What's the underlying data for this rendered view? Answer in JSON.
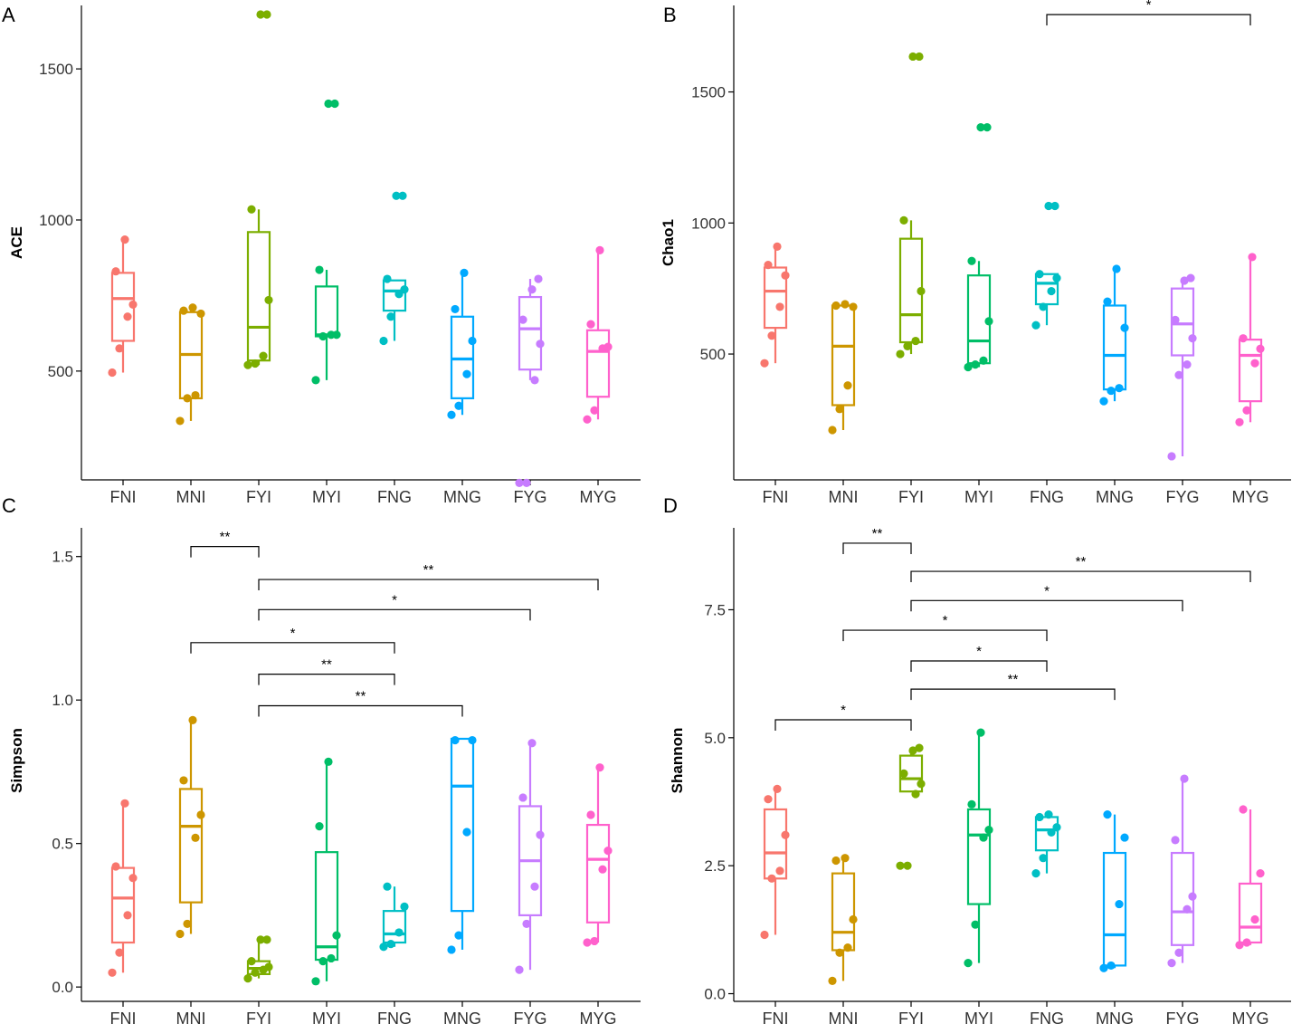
{
  "figure": {
    "categories": [
      "FNI",
      "MNI",
      "FYI",
      "MYI",
      "FNG",
      "MNG",
      "FYG",
      "MYG"
    ],
    "colors": {
      "FNI": "#F8766D",
      "MNI": "#CD9600",
      "FYI": "#7CAE00",
      "MYI": "#00BE67",
      "FNG": "#00BFC4",
      "MNG": "#00A9FF",
      "FYG": "#C77CFF",
      "MYG": "#FF61CC"
    }
  },
  "chart_data": [
    {
      "type": "box",
      "panel_label": "A",
      "ylabel": "ACE",
      "ylim": [
        140,
        1710
      ],
      "yticks": [
        500,
        1000,
        1500
      ],
      "ytick_labels": [
        "500",
        "1000",
        "1500"
      ],
      "boxes": [
        {
          "q1": 600,
          "median": 740,
          "q3": 825,
          "low": 495,
          "high": 935,
          "points": [
            495,
            575,
            680,
            720,
            830,
            935
          ]
        },
        {
          "q1": 410,
          "median": 555,
          "q3": 695,
          "low": 335,
          "high": 710,
          "points": [
            335,
            410,
            420,
            690,
            700,
            710
          ]
        },
        {
          "q1": 535,
          "median": 645,
          "q3": 960,
          "low": 520,
          "high": 1035,
          "points": [
            520,
            525,
            550,
            735,
            1035,
            1680,
            1680
          ]
        },
        {
          "q1": 615,
          "median": 620,
          "q3": 780,
          "low": 470,
          "high": 835,
          "points": [
            470,
            615,
            620,
            620,
            835,
            1385,
            1385
          ]
        },
        {
          "q1": 700,
          "median": 765,
          "q3": 800,
          "low": 600,
          "high": 800,
          "points": [
            600,
            680,
            755,
            770,
            805,
            1080,
            1080
          ]
        },
        {
          "q1": 410,
          "median": 540,
          "q3": 680,
          "low": 355,
          "high": 825,
          "points": [
            355,
            385,
            490,
            600,
            705,
            825
          ]
        },
        {
          "q1": 505,
          "median": 640,
          "q3": 745,
          "low": 470,
          "high": 805,
          "points": [
            130,
            130,
            470,
            590,
            670,
            770,
            805
          ]
        },
        {
          "q1": 415,
          "median": 565,
          "q3": 635,
          "low": 340,
          "high": 900,
          "points": [
            340,
            370,
            575,
            580,
            655,
            900
          ]
        }
      ],
      "significance": []
    },
    {
      "type": "box",
      "panel_label": "B",
      "ylabel": "Chao1",
      "ylim": [
        20,
        1830
      ],
      "yticks": [
        500,
        1000,
        1500
      ],
      "ytick_labels": [
        "500",
        "1000",
        "1500"
      ],
      "boxes": [
        {
          "q1": 600,
          "median": 740,
          "q3": 830,
          "low": 465,
          "high": 910,
          "points": [
            465,
            570,
            680,
            800,
            840,
            910
          ]
        },
        {
          "q1": 305,
          "median": 530,
          "q3": 685,
          "low": 210,
          "high": 690,
          "points": [
            210,
            290,
            380,
            680,
            685,
            690
          ]
        },
        {
          "q1": 545,
          "median": 650,
          "q3": 940,
          "low": 500,
          "high": 1010,
          "points": [
            500,
            530,
            550,
            740,
            1010,
            1635,
            1635
          ]
        },
        {
          "q1": 465,
          "median": 550,
          "q3": 800,
          "low": 450,
          "high": 855,
          "points": [
            450,
            460,
            475,
            625,
            855,
            1365,
            1365
          ]
        },
        {
          "q1": 690,
          "median": 770,
          "q3": 805,
          "low": 610,
          "high": 805,
          "points": [
            610,
            680,
            740,
            790,
            805,
            1065,
            1065
          ]
        },
        {
          "q1": 365,
          "median": 495,
          "q3": 685,
          "low": 320,
          "high": 825,
          "points": [
            320,
            360,
            370,
            600,
            700,
            825
          ]
        },
        {
          "q1": 495,
          "median": 615,
          "q3": 750,
          "low": 110,
          "high": 790,
          "points": [
            110,
            420,
            460,
            560,
            630,
            780,
            790
          ]
        },
        {
          "q1": 320,
          "median": 495,
          "q3": 555,
          "low": 240,
          "high": 870,
          "points": [
            240,
            285,
            465,
            520,
            560,
            870
          ]
        }
      ],
      "significance": [
        {
          "from": 4,
          "to": 7,
          "label": "*",
          "y": 1795
        }
      ]
    },
    {
      "type": "box",
      "panel_label": "C",
      "ylabel": "Simpson",
      "ylim": [
        -0.05,
        1.6
      ],
      "yticks": [
        0.0,
        0.5,
        1.0,
        1.5
      ],
      "ytick_labels": [
        "0.0",
        "0.5",
        "1.0",
        "1.5"
      ],
      "boxes": [
        {
          "q1": 0.155,
          "median": 0.31,
          "q3": 0.415,
          "low": 0.05,
          "high": 0.63,
          "points": [
            0.05,
            0.12,
            0.25,
            0.38,
            0.42,
            0.64
          ]
        },
        {
          "q1": 0.295,
          "median": 0.56,
          "q3": 0.69,
          "low": 0.185,
          "high": 0.93,
          "points": [
            0.185,
            0.22,
            0.52,
            0.6,
            0.72,
            0.93
          ]
        },
        {
          "q1": 0.045,
          "median": 0.065,
          "q3": 0.09,
          "low": 0.03,
          "high": 0.165,
          "points": [
            0.03,
            0.05,
            0.06,
            0.07,
            0.09,
            0.165,
            0.165
          ]
        },
        {
          "q1": 0.095,
          "median": 0.14,
          "q3": 0.47,
          "low": 0.02,
          "high": 0.785,
          "points": [
            0.02,
            0.09,
            0.1,
            0.18,
            0.56,
            0.785
          ]
        },
        {
          "q1": 0.155,
          "median": 0.185,
          "q3": 0.265,
          "low": 0.14,
          "high": 0.35,
          "points": [
            0.14,
            0.15,
            0.19,
            0.28,
            0.35
          ]
        },
        {
          "q1": 0.265,
          "median": 0.7,
          "q3": 0.865,
          "low": 0.13,
          "high": 0.865,
          "points": [
            0.13,
            0.18,
            0.54,
            0.86,
            0.86
          ]
        },
        {
          "q1": 0.25,
          "median": 0.44,
          "q3": 0.63,
          "low": 0.06,
          "high": 0.85,
          "points": [
            0.06,
            0.22,
            0.35,
            0.53,
            0.66,
            0.85
          ]
        },
        {
          "q1": 0.225,
          "median": 0.445,
          "q3": 0.565,
          "low": 0.155,
          "high": 0.765,
          "points": [
            0.155,
            0.16,
            0.41,
            0.475,
            0.6,
            0.765
          ]
        }
      ],
      "significance": [
        {
          "from": 1,
          "to": 2,
          "label": "**",
          "y": 1.535
        },
        {
          "from": 2,
          "to": 7,
          "label": "**",
          "y": 1.42
        },
        {
          "from": 2,
          "to": 6,
          "label": "*",
          "y": 1.315
        },
        {
          "from": 1,
          "to": 4,
          "label": "*",
          "y": 1.2
        },
        {
          "from": 2,
          "to": 4,
          "label": "**",
          "y": 1.09
        },
        {
          "from": 2,
          "to": 5,
          "label": "**",
          "y": 0.98
        }
      ]
    },
    {
      "type": "box",
      "panel_label": "D",
      "ylabel": "Shannon",
      "ylim": [
        -0.15,
        9.1
      ],
      "yticks": [
        0.0,
        2.5,
        5.0,
        7.5
      ],
      "ytick_labels": [
        "0.0",
        "2.5",
        "5.0",
        "7.5"
      ],
      "boxes": [
        {
          "q1": 2.25,
          "median": 2.75,
          "q3": 3.6,
          "low": 1.15,
          "high": 4.0,
          "points": [
            1.15,
            2.25,
            2.4,
            3.1,
            3.8,
            4.0
          ]
        },
        {
          "q1": 0.85,
          "median": 1.2,
          "q3": 2.35,
          "low": 0.25,
          "high": 2.65,
          "points": [
            0.25,
            0.8,
            0.9,
            1.45,
            2.6,
            2.65
          ]
        },
        {
          "q1": 3.95,
          "median": 4.2,
          "q3": 4.65,
          "low": 3.95,
          "high": 4.8,
          "points": [
            2.5,
            2.5,
            3.9,
            4.1,
            4.3,
            4.75,
            4.8
          ]
        },
        {
          "q1": 1.75,
          "median": 3.1,
          "q3": 3.6,
          "low": 0.6,
          "high": 5.1,
          "points": [
            0.6,
            1.35,
            3.05,
            3.2,
            3.7,
            5.1
          ]
        },
        {
          "q1": 2.8,
          "median": 3.2,
          "q3": 3.45,
          "low": 2.35,
          "high": 3.5,
          "points": [
            2.35,
            2.65,
            3.15,
            3.25,
            3.45,
            3.5
          ]
        },
        {
          "q1": 0.55,
          "median": 1.15,
          "q3": 2.75,
          "low": 0.5,
          "high": 3.5,
          "points": [
            0.5,
            0.55,
            1.75,
            3.05,
            3.5
          ]
        },
        {
          "q1": 0.95,
          "median": 1.6,
          "q3": 2.75,
          "low": 0.6,
          "high": 4.2,
          "points": [
            0.6,
            0.8,
            1.65,
            1.9,
            3.0,
            4.2
          ]
        },
        {
          "q1": 1.0,
          "median": 1.3,
          "q3": 2.15,
          "low": 0.95,
          "high": 3.6,
          "points": [
            0.95,
            1.0,
            1.45,
            2.35,
            3.6
          ]
        }
      ],
      "significance": [
        {
          "from": 1,
          "to": 2,
          "label": "**",
          "y": 8.8
        },
        {
          "from": 2,
          "to": 7,
          "label": "**",
          "y": 8.25
        },
        {
          "from": 2,
          "to": 6,
          "label": "*",
          "y": 7.68
        },
        {
          "from": 1,
          "to": 4,
          "label": "*",
          "y": 7.1
        },
        {
          "from": 2,
          "to": 4,
          "label": "*",
          "y": 6.5
        },
        {
          "from": 2,
          "to": 5,
          "label": "**",
          "y": 5.95
        },
        {
          "from": 0,
          "to": 2,
          "label": "*",
          "y": 5.35
        }
      ]
    }
  ]
}
